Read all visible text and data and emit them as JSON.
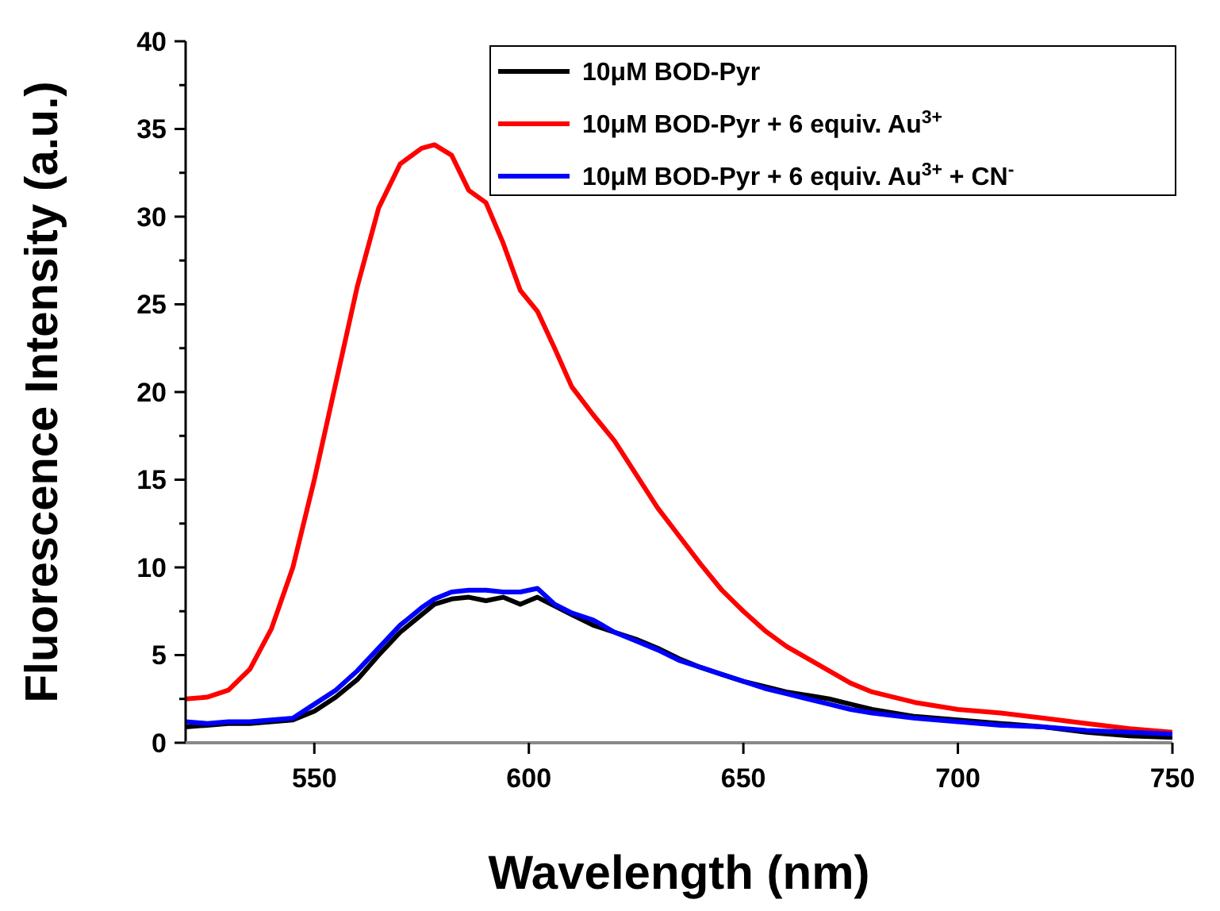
{
  "chart_data": {
    "type": "line",
    "xlabel": "Wavelength (nm)",
    "ylabel": "Fluorescence Intensity (a.u.)",
    "xlim": [
      520,
      750
    ],
    "ylim": [
      0,
      40
    ],
    "xticks": [
      550,
      600,
      650,
      700,
      750
    ],
    "yticks": [
      0,
      {
        "value": 2.5,
        "label": null
      },
      5,
      {
        "value": 7.5,
        "label": null
      },
      10,
      {
        "value": 12.5,
        "label": null
      },
      15,
      {
        "value": 17.5,
        "label": null
      },
      20,
      {
        "value": 22.5,
        "label": null
      },
      25,
      {
        "value": 27.5,
        "label": null
      },
      30,
      {
        "value": 32.5,
        "label": null
      },
      35,
      {
        "value": 37.5,
        "label": null
      },
      40
    ],
    "grid": false,
    "legend": "top right",
    "marker": "none",
    "line_style": "solid",
    "x": [
      520,
      525,
      530,
      535,
      540,
      545,
      550,
      555,
      560,
      565,
      570,
      575,
      578,
      582,
      586,
      590,
      594,
      598,
      602,
      606,
      610,
      615,
      620,
      625,
      630,
      635,
      640,
      645,
      650,
      655,
      660,
      665,
      670,
      675,
      680,
      690,
      700,
      710,
      720,
      730,
      740,
      750
    ],
    "series": [
      {
        "name": "10μM BOD-Pyr",
        "color": "#000000",
        "values": [
          0.9,
          1.0,
          1.1,
          1.1,
          1.2,
          1.3,
          1.8,
          2.6,
          3.6,
          5.0,
          6.3,
          7.3,
          7.9,
          8.2,
          8.3,
          8.1,
          8.3,
          7.9,
          8.3,
          7.8,
          7.3,
          6.7,
          6.3,
          5.9,
          5.4,
          4.8,
          4.3,
          3.9,
          3.5,
          3.2,
          2.9,
          2.7,
          2.5,
          2.2,
          1.9,
          1.5,
          1.3,
          1.1,
          0.9,
          0.6,
          0.4,
          0.3
        ]
      },
      {
        "name": "10μM BOD-Pyr + 6 equiv. Au$^{3+}$",
        "color": "#ff0000",
        "values": [
          2.5,
          2.6,
          3.0,
          4.2,
          6.5,
          10.0,
          15.0,
          20.5,
          26.0,
          30.5,
          33.0,
          33.9,
          34.1,
          33.5,
          31.5,
          30.8,
          28.5,
          25.8,
          24.6,
          22.5,
          20.3,
          18.7,
          17.2,
          15.3,
          13.4,
          11.8,
          10.2,
          8.7,
          7.5,
          6.4,
          5.5,
          4.8,
          4.1,
          3.4,
          2.9,
          2.3,
          1.9,
          1.7,
          1.4,
          1.1,
          0.8,
          0.6
        ]
      },
      {
        "name": "10μM BOD-Pyr + 6 equiv. Au$^{3+}$ + CN$^{-}$",
        "color": "#0000ff",
        "values": [
          1.2,
          1.1,
          1.2,
          1.2,
          1.3,
          1.4,
          2.2,
          3.0,
          4.1,
          5.4,
          6.7,
          7.7,
          8.2,
          8.6,
          8.7,
          8.7,
          8.6,
          8.6,
          8.8,
          7.9,
          7.4,
          7.0,
          6.3,
          5.8,
          5.3,
          4.7,
          4.3,
          3.9,
          3.5,
          3.1,
          2.8,
          2.5,
          2.2,
          1.9,
          1.7,
          1.4,
          1.2,
          1.0,
          0.9,
          0.7,
          0.6,
          0.5
        ]
      }
    ]
  }
}
